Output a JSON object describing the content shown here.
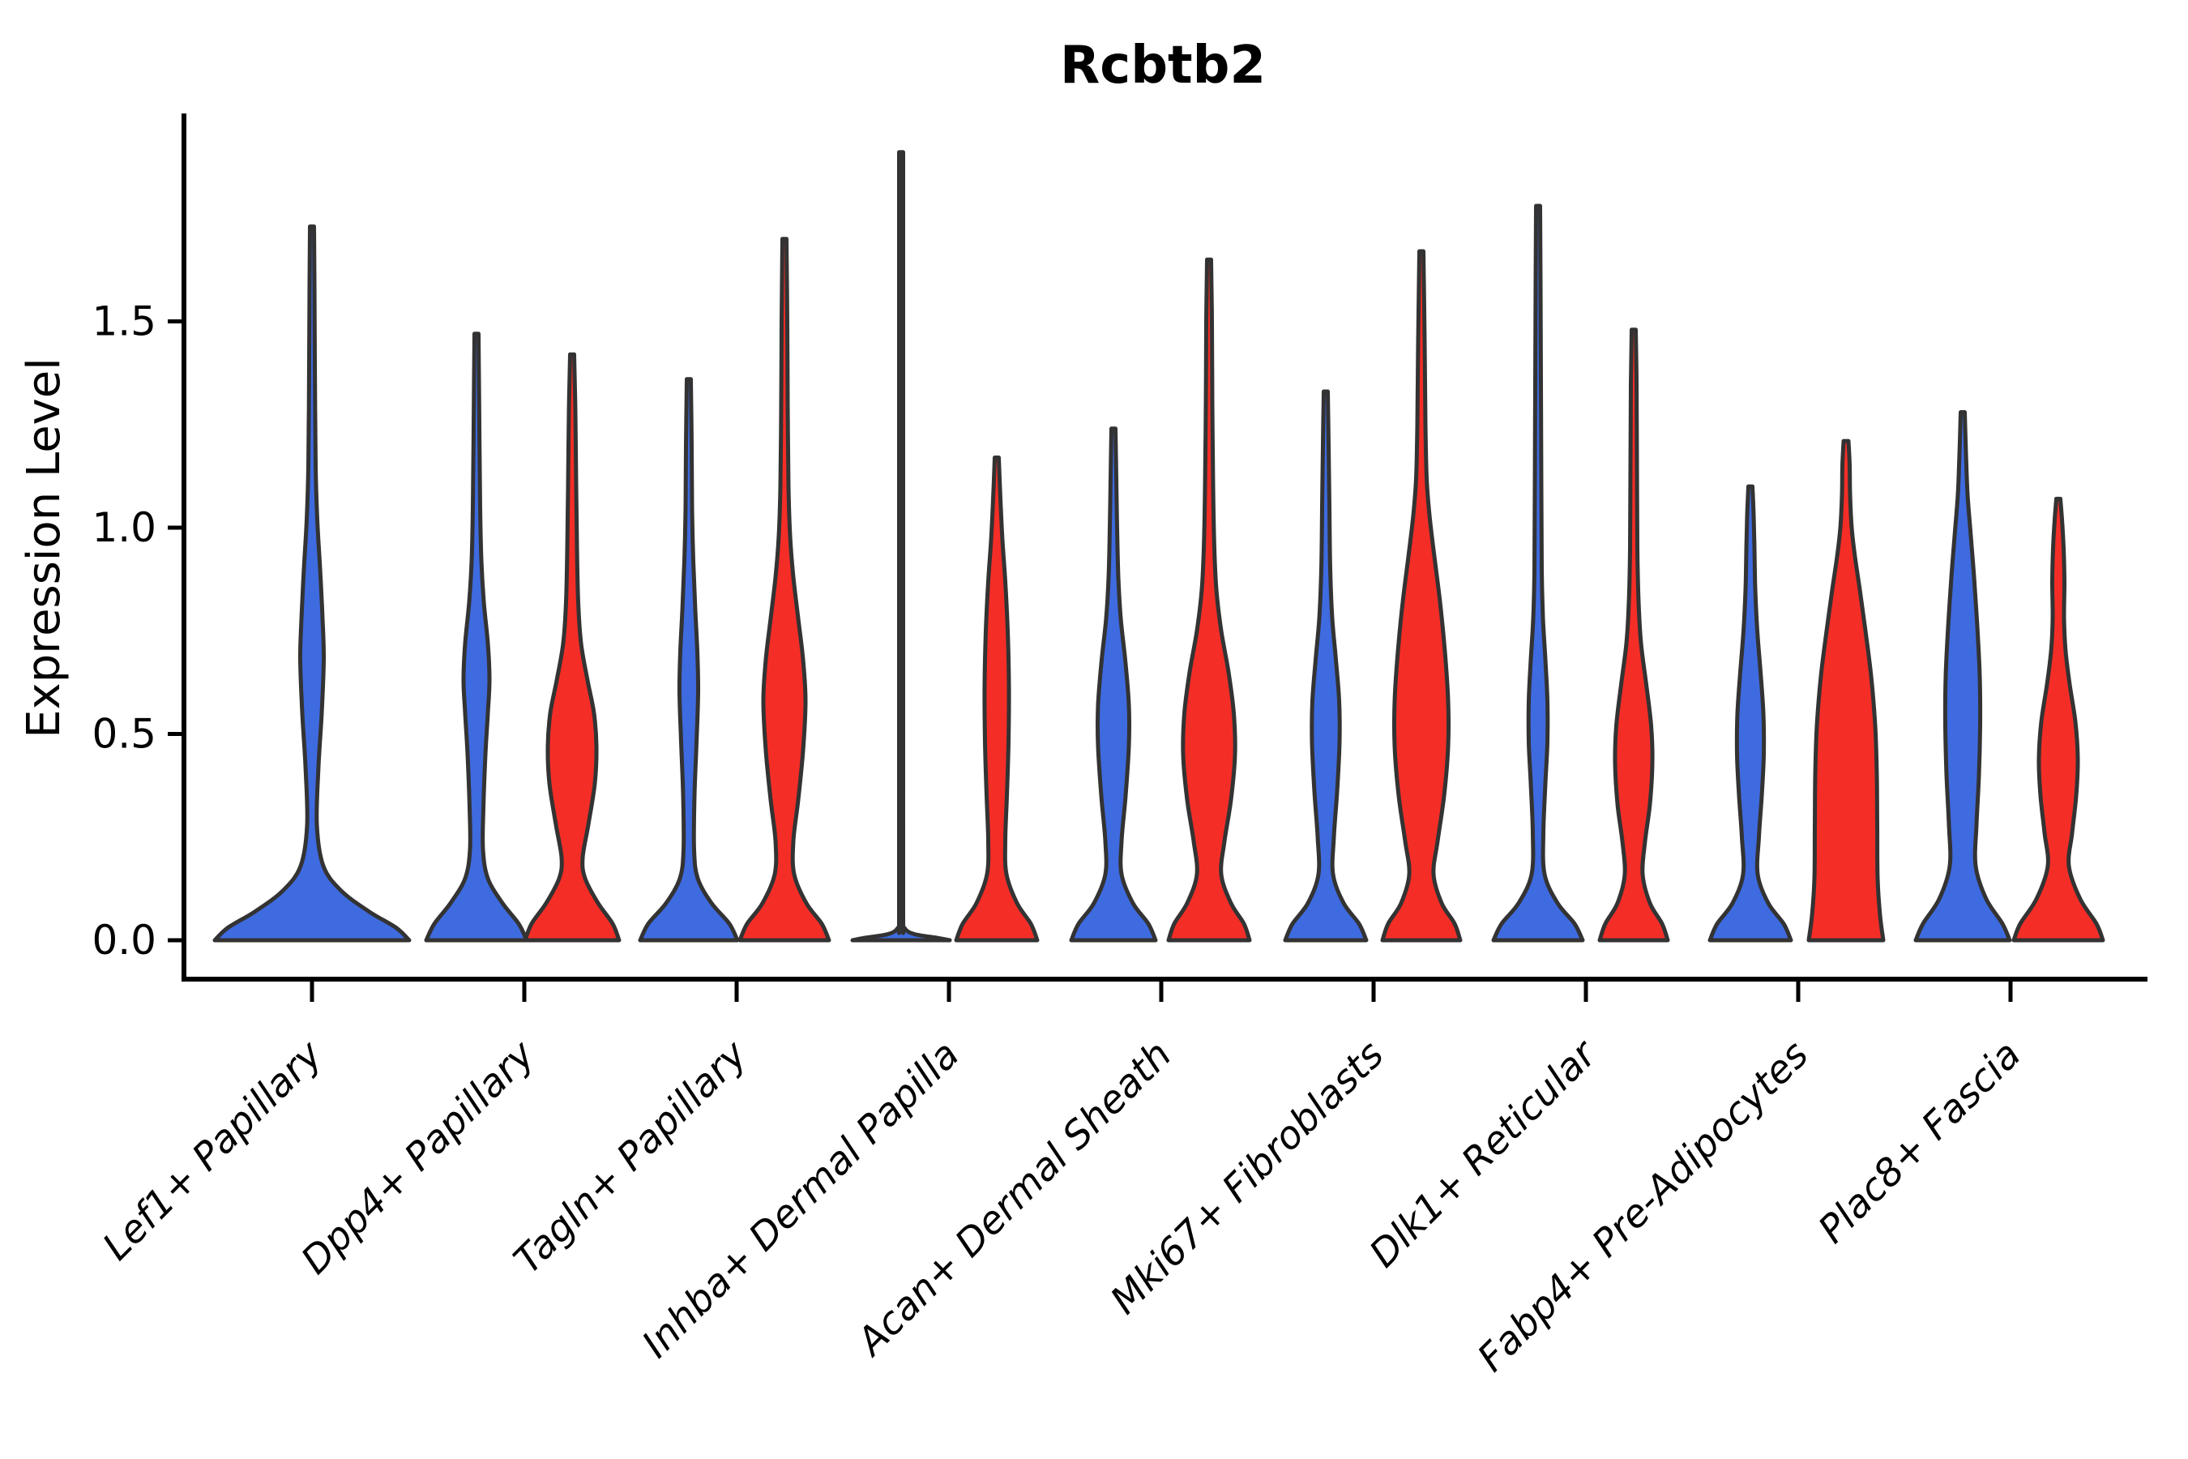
{
  "title": "Rcbtb2",
  "ylabel": "Expression Level",
  "palette": {
    "series_blue": "#3F6BE0",
    "series_red": "#F52D27",
    "violin_outline": "#333333",
    "axis": "#000000",
    "background": "#FFFFFF"
  },
  "chart_data": {
    "type": "violin",
    "title": "Rcbtb2",
    "xlabel": "",
    "ylabel": "Expression Level",
    "yticks": [
      "0.0",
      "0.5",
      "1.0",
      "1.5"
    ],
    "ylim": [
      -0.09,
      2.0
    ],
    "grid": false,
    "legend": "none",
    "categories": [
      "Lef1+ Papillary",
      "Dpp4+ Papillary",
      "Tagln+ Papillary",
      "Inhba+ Dermal Papilla",
      "Acan+ Dermal Sheath",
      "Mki67+ Fibroblasts",
      "Dlk1+ Reticular",
      "Fabp4+ Pre-Adipocytes",
      "Plac8+ Fascia"
    ],
    "series": [
      {
        "name": "group-blue",
        "color": "#3F6BE0"
      },
      {
        "name": "group-red",
        "color": "#F52D27"
      }
    ],
    "violins": [
      {
        "category": "Lef1+ Papillary",
        "series": "group-blue",
        "dodge": 0,
        "max": 1.73,
        "profile": [
          [
            0,
            120
          ],
          [
            0.03,
            104
          ],
          [
            0.07,
            70
          ],
          [
            0.12,
            36
          ],
          [
            0.18,
            14
          ],
          [
            0.28,
            6
          ],
          [
            0.42,
            8
          ],
          [
            0.55,
            12
          ],
          [
            0.68,
            14.5
          ],
          [
            0.78,
            13
          ],
          [
            0.9,
            10
          ],
          [
            1.02,
            6.5
          ],
          [
            1.15,
            4.5
          ],
          [
            1.4,
            3.5
          ],
          [
            1.6,
            3
          ],
          [
            1.73,
            2.5
          ]
        ]
      },
      {
        "category": "Dpp4+ Papillary",
        "series": "group-blue",
        "dodge": -59,
        "max": 1.47,
        "profile": [
          [
            0,
            62
          ],
          [
            0.04,
            52
          ],
          [
            0.09,
            32
          ],
          [
            0.15,
            14
          ],
          [
            0.22,
            8
          ],
          [
            0.32,
            8.5
          ],
          [
            0.45,
            11
          ],
          [
            0.55,
            14
          ],
          [
            0.63,
            16
          ],
          [
            0.72,
            14
          ],
          [
            0.82,
            9
          ],
          [
            0.92,
            6
          ],
          [
            1.05,
            4.5
          ],
          [
            1.25,
            3.5
          ],
          [
            1.47,
            2.5
          ]
        ]
      },
      {
        "category": "Dpp4+ Papillary",
        "series": "group-red",
        "dodge": 59,
        "max": 1.42,
        "profile": [
          [
            0,
            58
          ],
          [
            0.04,
            50
          ],
          [
            0.09,
            32
          ],
          [
            0.15,
            16
          ],
          [
            0.2,
            13
          ],
          [
            0.28,
            20
          ],
          [
            0.38,
            28
          ],
          [
            0.47,
            30
          ],
          [
            0.55,
            27
          ],
          [
            0.63,
            19
          ],
          [
            0.72,
            11
          ],
          [
            0.82,
            7.5
          ],
          [
            0.95,
            6
          ],
          [
            1.1,
            5
          ],
          [
            1.28,
            4
          ],
          [
            1.42,
            2.5
          ]
        ]
      },
      {
        "category": "Tagln+ Papillary",
        "series": "group-blue",
        "dodge": -59,
        "max": 1.36,
        "profile": [
          [
            0,
            60
          ],
          [
            0.04,
            50
          ],
          [
            0.09,
            28
          ],
          [
            0.15,
            11
          ],
          [
            0.22,
            6.5
          ],
          [
            0.35,
            7
          ],
          [
            0.48,
            9.5
          ],
          [
            0.6,
            11.5
          ],
          [
            0.7,
            10.5
          ],
          [
            0.8,
            8
          ],
          [
            0.92,
            5.5
          ],
          [
            1.05,
            4
          ],
          [
            1.2,
            3.5
          ],
          [
            1.36,
            2.5
          ]
        ]
      },
      {
        "category": "Tagln+ Papillary",
        "series": "group-red",
        "dodge": 59,
        "max": 1.7,
        "profile": [
          [
            0,
            55
          ],
          [
            0.04,
            46
          ],
          [
            0.09,
            27
          ],
          [
            0.16,
            12
          ],
          [
            0.24,
            11
          ],
          [
            0.34,
            17
          ],
          [
            0.46,
            23
          ],
          [
            0.58,
            26
          ],
          [
            0.68,
            23
          ],
          [
            0.78,
            17
          ],
          [
            0.88,
            11
          ],
          [
            0.98,
            7
          ],
          [
            1.1,
            5
          ],
          [
            1.3,
            4
          ],
          [
            1.5,
            3.5
          ],
          [
            1.7,
            2.5
          ]
        ]
      },
      {
        "category": "Inhba+ Dermal Papilla",
        "series": "group-blue",
        "dodge": -59,
        "max": 1.91,
        "profile": [
          [
            0,
            60
          ],
          [
            0.006,
            44
          ],
          [
            0.015,
            16
          ],
          [
            0.03,
            4
          ],
          [
            0.06,
            2.5
          ],
          [
            0.5,
            2.5
          ],
          [
            1.2,
            2.5
          ],
          [
            1.91,
            2.5
          ]
        ]
      },
      {
        "category": "Inhba+ Dermal Papilla",
        "series": "group-red",
        "dodge": 59,
        "max": 1.17,
        "profile": [
          [
            0,
            50
          ],
          [
            0.04,
            42
          ],
          [
            0.09,
            25
          ],
          [
            0.16,
            12
          ],
          [
            0.24,
            10.5
          ],
          [
            0.35,
            12.5
          ],
          [
            0.48,
            14.5
          ],
          [
            0.62,
            15
          ],
          [
            0.75,
            13.5
          ],
          [
            0.87,
            10.5
          ],
          [
            0.97,
            7
          ],
          [
            1.07,
            4.5
          ],
          [
            1.17,
            2.5
          ]
        ]
      },
      {
        "category": "Acan+ Dermal Sheath",
        "series": "group-blue",
        "dodge": -59,
        "max": 1.24,
        "profile": [
          [
            0,
            52
          ],
          [
            0.04,
            43
          ],
          [
            0.09,
            24
          ],
          [
            0.16,
            10
          ],
          [
            0.24,
            10
          ],
          [
            0.35,
            15
          ],
          [
            0.47,
            19
          ],
          [
            0.57,
            19
          ],
          [
            0.68,
            14.5
          ],
          [
            0.78,
            9
          ],
          [
            0.88,
            6
          ],
          [
            1.0,
            4.5
          ],
          [
            1.12,
            3.5
          ],
          [
            1.24,
            2.5
          ]
        ]
      },
      {
        "category": "Acan+ Dermal Sheath",
        "series": "group-red",
        "dodge": 59,
        "max": 1.65,
        "profile": [
          [
            0,
            50
          ],
          [
            0.04,
            43
          ],
          [
            0.09,
            27
          ],
          [
            0.16,
            15
          ],
          [
            0.24,
            19
          ],
          [
            0.34,
            27
          ],
          [
            0.45,
            32
          ],
          [
            0.55,
            30.5
          ],
          [
            0.65,
            24
          ],
          [
            0.75,
            15
          ],
          [
            0.85,
            9
          ],
          [
            0.95,
            6.5
          ],
          [
            1.1,
            5
          ],
          [
            1.3,
            4
          ],
          [
            1.5,
            3.5
          ],
          [
            1.65,
            2.5
          ]
        ]
      },
      {
        "category": "Mki67+ Fibroblasts",
        "series": "group-blue",
        "dodge": -59,
        "max": 1.33,
        "profile": [
          [
            0,
            50
          ],
          [
            0.04,
            41
          ],
          [
            0.09,
            22
          ],
          [
            0.16,
            9
          ],
          [
            0.25,
            10
          ],
          [
            0.36,
            14
          ],
          [
            0.48,
            17
          ],
          [
            0.58,
            16.5
          ],
          [
            0.68,
            12.5
          ],
          [
            0.78,
            8
          ],
          [
            0.9,
            5.5
          ],
          [
            1.05,
            4.5
          ],
          [
            1.2,
            3.5
          ],
          [
            1.33,
            2.5
          ]
        ]
      },
      {
        "category": "Mki67+ Fibroblasts",
        "series": "group-red",
        "dodge": 59,
        "max": 1.67,
        "profile": [
          [
            0,
            48
          ],
          [
            0.04,
            41
          ],
          [
            0.09,
            25
          ],
          [
            0.16,
            15
          ],
          [
            0.24,
            20
          ],
          [
            0.35,
            28
          ],
          [
            0.47,
            33
          ],
          [
            0.58,
            33
          ],
          [
            0.7,
            29
          ],
          [
            0.82,
            23
          ],
          [
            0.93,
            16
          ],
          [
            1.03,
            10
          ],
          [
            1.12,
            6.5
          ],
          [
            1.25,
            5
          ],
          [
            1.45,
            4
          ],
          [
            1.67,
            2.5
          ]
        ]
      },
      {
        "category": "Dlk1+ Reticular",
        "series": "group-blue",
        "dodge": -59,
        "max": 1.78,
        "profile": [
          [
            0,
            55
          ],
          [
            0.04,
            45
          ],
          [
            0.09,
            24
          ],
          [
            0.16,
            8
          ],
          [
            0.26,
            6.5
          ],
          [
            0.38,
            9
          ],
          [
            0.48,
            11.5
          ],
          [
            0.58,
            11.5
          ],
          [
            0.68,
            9
          ],
          [
            0.78,
            6
          ],
          [
            0.9,
            4.5
          ],
          [
            1.1,
            4
          ],
          [
            1.35,
            3.5
          ],
          [
            1.6,
            3
          ],
          [
            1.78,
            2.5
          ]
        ]
      },
      {
        "category": "Dlk1+ Reticular",
        "series": "group-red",
        "dodge": 59,
        "max": 1.48,
        "profile": [
          [
            0,
            42
          ],
          [
            0.04,
            35
          ],
          [
            0.09,
            20
          ],
          [
            0.16,
            11
          ],
          [
            0.24,
            14
          ],
          [
            0.33,
            20
          ],
          [
            0.43,
            23
          ],
          [
            0.52,
            21.5
          ],
          [
            0.62,
            15.5
          ],
          [
            0.72,
            9
          ],
          [
            0.82,
            6
          ],
          [
            0.95,
            4.5
          ],
          [
            1.15,
            4
          ],
          [
            1.35,
            3.5
          ],
          [
            1.48,
            2.5
          ]
        ]
      },
      {
        "category": "Fabp4+ Pre-Adipocytes",
        "series": "group-blue",
        "dodge": -59,
        "max": 1.1,
        "profile": [
          [
            0,
            50
          ],
          [
            0.04,
            41
          ],
          [
            0.09,
            22
          ],
          [
            0.16,
            9
          ],
          [
            0.25,
            10.5
          ],
          [
            0.35,
            14
          ],
          [
            0.45,
            16.5
          ],
          [
            0.55,
            16
          ],
          [
            0.65,
            12.5
          ],
          [
            0.75,
            8.5
          ],
          [
            0.85,
            6
          ],
          [
            0.95,
            5
          ],
          [
            1.03,
            4
          ],
          [
            1.1,
            2.5
          ]
        ]
      },
      {
        "category": "Fabp4+ Pre-Adipocytes",
        "series": "group-red",
        "dodge": 59,
        "max": 1.21,
        "profile": [
          [
            0,
            46
          ],
          [
            0.06,
            42
          ],
          [
            0.15,
            39
          ],
          [
            0.28,
            38.5
          ],
          [
            0.4,
            38
          ],
          [
            0.52,
            36
          ],
          [
            0.64,
            31
          ],
          [
            0.75,
            24
          ],
          [
            0.85,
            17
          ],
          [
            0.93,
            11
          ],
          [
            1.0,
            7
          ],
          [
            1.08,
            5
          ],
          [
            1.15,
            4.5
          ],
          [
            1.21,
            3
          ]
        ]
      },
      {
        "category": "Plac8+ Fascia",
        "series": "group-blue",
        "dodge": -59,
        "max": 1.28,
        "profile": [
          [
            0,
            58
          ],
          [
            0.04,
            49
          ],
          [
            0.1,
            29
          ],
          [
            0.18,
            16
          ],
          [
            0.28,
            17
          ],
          [
            0.4,
            20
          ],
          [
            0.52,
            21.5
          ],
          [
            0.64,
            21
          ],
          [
            0.76,
            18
          ],
          [
            0.88,
            14
          ],
          [
            0.98,
            10
          ],
          [
            1.08,
            6
          ],
          [
            1.18,
            4
          ],
          [
            1.28,
            2.5
          ]
        ]
      },
      {
        "category": "Plac8+ Fascia",
        "series": "group-red",
        "dodge": 59,
        "max": 1.07,
        "profile": [
          [
            0,
            55
          ],
          [
            0.04,
            47
          ],
          [
            0.1,
            27
          ],
          [
            0.18,
            13
          ],
          [
            0.26,
            17
          ],
          [
            0.35,
            22
          ],
          [
            0.44,
            24
          ],
          [
            0.53,
            21
          ],
          [
            0.62,
            14
          ],
          [
            0.7,
            9
          ],
          [
            0.78,
            7
          ],
          [
            0.87,
            7.5
          ],
          [
            0.95,
            6.5
          ],
          [
            1.02,
            4.5
          ],
          [
            1.07,
            2.5
          ]
        ]
      }
    ]
  }
}
